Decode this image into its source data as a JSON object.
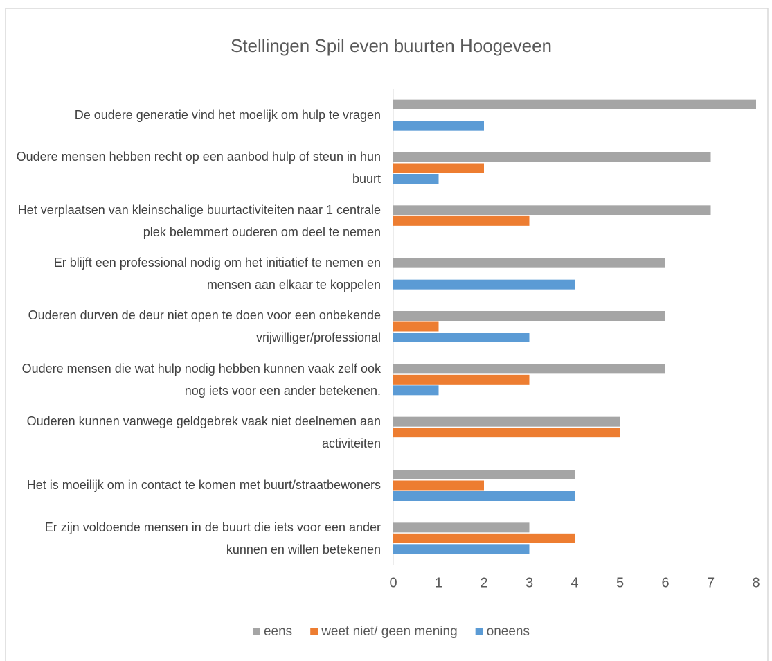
{
  "chart_data": {
    "type": "bar",
    "orientation": "horizontal",
    "title": "Stellingen Spil even buurten Hoogeveen",
    "categories": [
      "De oudere generatie vind het moelijk om hulp te vragen",
      "Oudere mensen hebben recht op een aanbod hulp of steun in hun buurt",
      "Het verplaatsen van kleinschalige buurtactiviteiten naar 1 centrale plek belemmert ouderen om deel te nemen",
      "Er blijft een professional nodig om het initiatief te nemen en mensen aan elkaar te koppelen",
      "Ouderen durven de deur niet open te doen voor een onbekende vrijwilliger/professional",
      "Oudere mensen die wat hulp nodig hebben kunnen vaak zelf ook nog iets voor een ander betekenen.",
      "Ouderen kunnen vanwege geldgebrek vaak niet deelnemen aan activiteiten",
      "Het is moeilijk om in contact te komen met buurt/straatbewoners",
      "Er zijn voldoende mensen in de buurt die iets voor een ander kunnen en willen betekenen"
    ],
    "series": [
      {
        "name": "eens",
        "color": "#a5a5a5",
        "values": [
          8,
          7,
          7,
          6,
          6,
          6,
          5,
          4,
          3
        ]
      },
      {
        "name": "weet niet/ geen mening",
        "color": "#ed7d31",
        "values": [
          0,
          2,
          3,
          0,
          1,
          3,
          5,
          2,
          4
        ]
      },
      {
        "name": "oneens",
        "color": "#5b9bd5",
        "values": [
          2,
          1,
          0,
          4,
          3,
          1,
          0,
          4,
          3
        ]
      }
    ],
    "xlim": [
      0,
      8
    ],
    "xticks": [
      0,
      1,
      2,
      3,
      4,
      5,
      6,
      7,
      8
    ],
    "grid": false,
    "legend": "bottom"
  }
}
